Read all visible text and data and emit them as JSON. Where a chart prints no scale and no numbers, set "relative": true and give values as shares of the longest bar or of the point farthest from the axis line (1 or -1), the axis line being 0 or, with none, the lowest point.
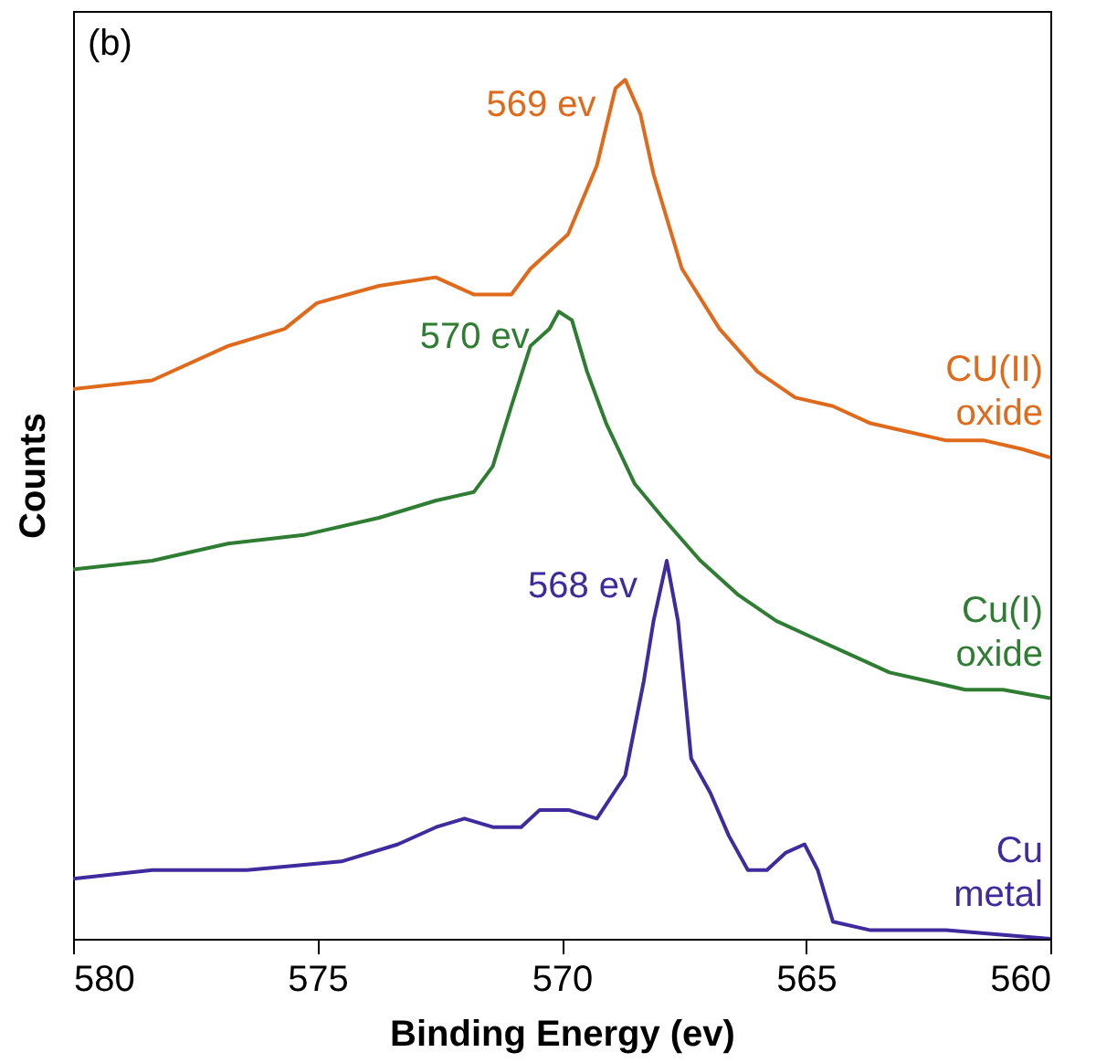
{
  "chart_data": {
    "type": "line",
    "xlabel": "Binding Energy (ev)",
    "ylabel": "Counts",
    "relative": true,
    "xlim": [
      580,
      560
    ],
    "xticks": [
      580,
      575,
      570,
      565,
      560
    ],
    "legend": false,
    "grid": false,
    "annotations": [
      "(b)",
      {
        "text": "569 ev",
        "x": 568.7,
        "y": 1.0
      },
      {
        "text": "570 ev",
        "x": 570.06,
        "y": 0.73
      },
      {
        "text": "568 ev",
        "x": 567.85,
        "y": 0.44
      }
    ],
    "series": [
      {
        "name": "CU(II) oxide",
        "color": "#e06a1b",
        "x": [
          580,
          578.38,
          576.83,
          575.67,
          575.01,
          573.74,
          572.58,
          571.8,
          571.03,
          570.64,
          569.87,
          569.28,
          568.9,
          568.7,
          568.39,
          568.12,
          567.54,
          566.77,
          565.99,
          565.22,
          564.45,
          563.68,
          562.9,
          562.13,
          561.35,
          560.58,
          560
        ],
        "values": [
          0.64,
          0.65,
          0.69,
          0.71,
          0.74,
          0.76,
          0.77,
          0.75,
          0.75,
          0.78,
          0.82,
          0.9,
          0.99,
          1.0,
          0.96,
          0.89,
          0.78,
          0.71,
          0.66,
          0.63,
          0.62,
          0.6,
          0.59,
          0.58,
          0.58,
          0.57,
          0.56
        ]
      },
      {
        "name": "Cu(I) oxide",
        "color": "#2e7d32",
        "x": [
          580,
          578.38,
          576.83,
          575.28,
          573.74,
          572.58,
          571.8,
          571.41,
          571.03,
          570.64,
          570.25,
          570.06,
          569.79,
          569.48,
          569.09,
          568.51,
          567.93,
          567.16,
          566.38,
          565.61,
          564.84,
          564.06,
          563.29,
          562.51,
          561.74,
          560.97,
          560
        ],
        "values": [
          0.43,
          0.44,
          0.46,
          0.47,
          0.49,
          0.51,
          0.52,
          0.55,
          0.62,
          0.69,
          0.71,
          0.73,
          0.72,
          0.66,
          0.6,
          0.53,
          0.49,
          0.44,
          0.4,
          0.37,
          0.35,
          0.33,
          0.31,
          0.3,
          0.29,
          0.29,
          0.28
        ]
      },
      {
        "name": "Cu metal",
        "color": "#3f2a9e",
        "x": [
          580,
          578.38,
          576.44,
          574.51,
          573.35,
          572.57,
          571.99,
          571.41,
          570.83,
          570.45,
          569.86,
          569.28,
          568.7,
          568.32,
          568.12,
          567.85,
          567.62,
          567.35,
          566.96,
          566.58,
          566.19,
          565.8,
          565.42,
          565.03,
          564.76,
          564.45,
          563.68,
          562.13,
          560
        ],
        "values": [
          0.07,
          0.08,
          0.08,
          0.09,
          0.11,
          0.13,
          0.14,
          0.13,
          0.13,
          0.15,
          0.15,
          0.14,
          0.19,
          0.3,
          0.37,
          0.44,
          0.37,
          0.21,
          0.17,
          0.12,
          0.08,
          0.08,
          0.1,
          0.11,
          0.08,
          0.02,
          0.01,
          0.01,
          0.0
        ]
      }
    ]
  }
}
